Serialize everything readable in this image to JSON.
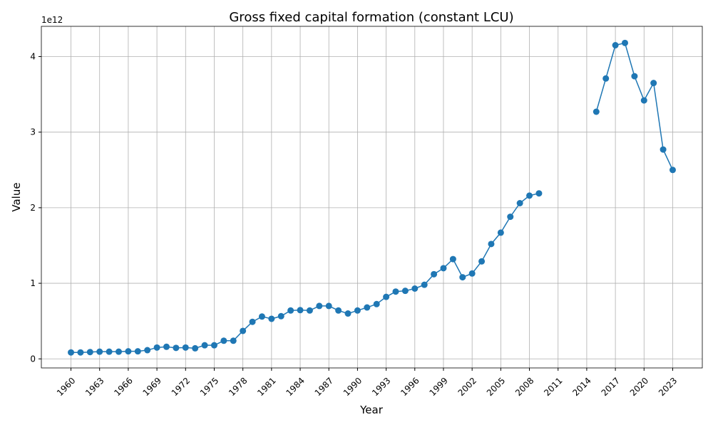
{
  "chart_data": {
    "type": "line",
    "title": "Gross fixed capital formation (constant LCU)",
    "x_label": "Year",
    "y_label": "Value",
    "y_offset_label": "1e12",
    "x": [
      1960,
      1961,
      1962,
      1963,
      1964,
      1965,
      1966,
      1967,
      1968,
      1969,
      1970,
      1971,
      1972,
      1973,
      1974,
      1975,
      1976,
      1977,
      1978,
      1979,
      1980,
      1981,
      1982,
      1983,
      1984,
      1985,
      1986,
      1987,
      1988,
      1989,
      1990,
      1991,
      1992,
      1993,
      1994,
      1995,
      1996,
      1997,
      1998,
      1999,
      2000,
      2001,
      2002,
      2003,
      2004,
      2005,
      2006,
      2007,
      2008,
      2009,
      2010,
      2011,
      2012,
      2013,
      2014,
      2015,
      2016,
      2017,
      2018,
      2019,
      2020,
      2021,
      2022,
      2023
    ],
    "series": [
      {
        "color": "#1f77b4",
        "values": [
          0.085,
          0.085,
          0.09,
          0.095,
          0.095,
          0.095,
          0.1,
          0.1,
          0.115,
          0.15,
          0.16,
          0.145,
          0.15,
          0.14,
          0.18,
          0.18,
          0.24,
          0.24,
          0.37,
          0.49,
          0.56,
          0.53,
          0.565,
          0.64,
          0.645,
          0.64,
          0.7,
          0.7,
          0.64,
          0.6,
          0.64,
          0.68,
          0.725,
          0.82,
          0.89,
          0.9,
          0.93,
          0.98,
          1.12,
          1.2,
          1.32,
          1.08,
          1.13,
          1.29,
          1.52,
          1.67,
          1.88,
          2.06,
          2.16,
          2.19,
          null,
          null,
          null,
          null,
          null,
          3.27,
          3.71,
          4.15,
          4.18,
          3.74,
          3.42,
          3.65,
          2.77,
          2.5
        ]
      }
    ],
    "xlim": [
      1956.9,
      2026.1
    ],
    "ylim": [
      -0.12,
      4.4
    ],
    "xticks": [
      1960,
      1963,
      1966,
      1969,
      1972,
      1975,
      1978,
      1981,
      1984,
      1987,
      1990,
      1993,
      1996,
      1999,
      2002,
      2005,
      2008,
      2011,
      2014,
      2017,
      2020,
      2023
    ],
    "yticks": [
      0,
      1,
      2,
      3,
      4
    ],
    "grid": true
  }
}
